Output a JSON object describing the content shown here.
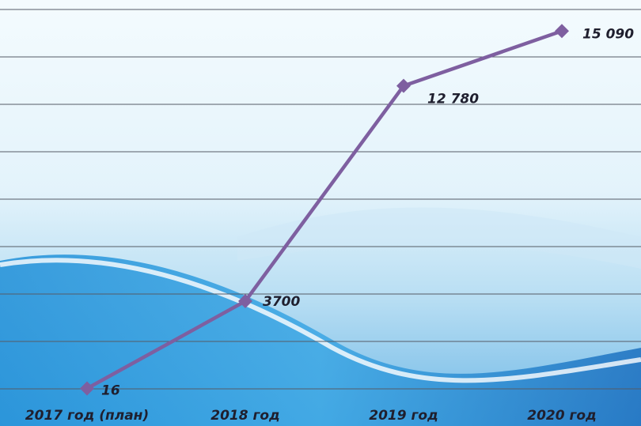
{
  "chart_data": {
    "type": "line",
    "categories": [
      "2017 год (план)",
      "2018 год",
      "2019 год",
      "2020 год"
    ],
    "series": [
      {
        "color": "#7e5fa0",
        "values": [
          16,
          3700,
          12780,
          15090
        ],
        "value_labels": [
          "16",
          "3700",
          "12 780",
          "15 090"
        ]
      }
    ],
    "ylim": [
      0,
      16000
    ],
    "yticks": [
      0,
      2000,
      4000,
      6000,
      8000,
      10000,
      12000,
      14000,
      16000
    ],
    "grid": true
  }
}
